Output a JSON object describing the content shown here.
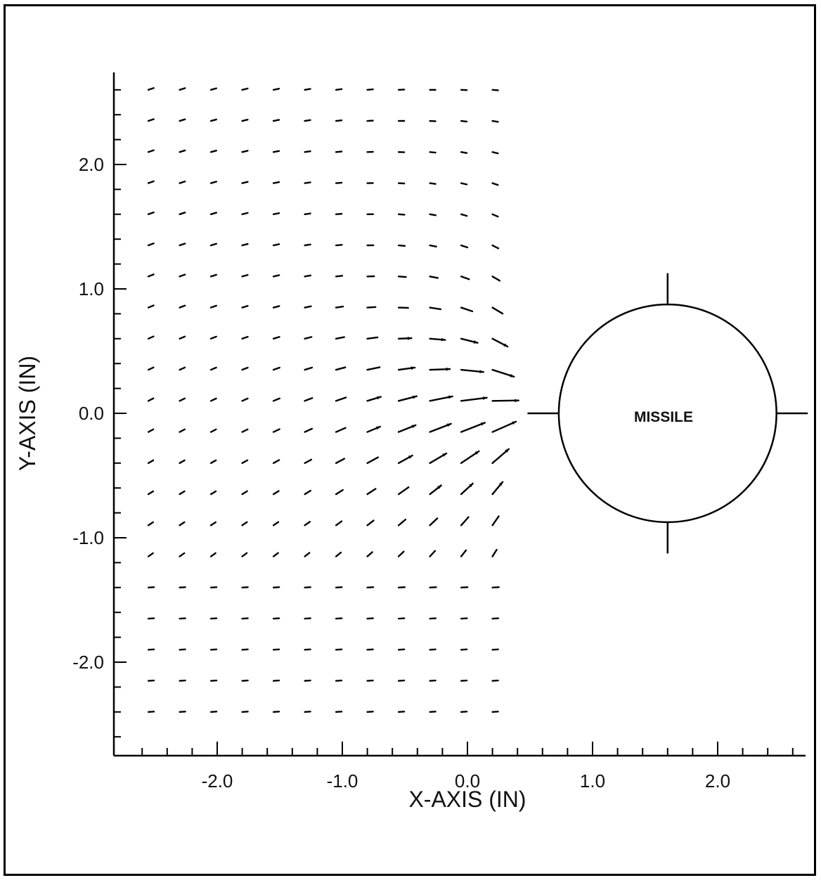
{
  "chart_data": {
    "type": "quiver",
    "title": "",
    "xlabel": "X-AXIS (IN)",
    "ylabel": "Y-AXIS (IN)",
    "xlim": [
      -2.75,
      2.75
    ],
    "ylim": [
      -2.7,
      2.75
    ],
    "x_ticks": [
      -2.0,
      -1.0,
      0.0,
      1.0,
      2.0
    ],
    "x_tick_labels": [
      "-2.0",
      "-1.0",
      "0.0",
      "1.0",
      "2.0"
    ],
    "y_ticks": [
      2.0,
      1.0,
      0.0,
      -1.0,
      -2.0
    ],
    "y_tick_labels": [
      "2.0",
      "1.0",
      "0.0",
      "-1.0",
      "-2.0"
    ],
    "x_minor_step": 0.2,
    "y_minor_step": 0.2,
    "grid": false,
    "vector_field": {
      "x_start": -2.55,
      "x_step": 0.25,
      "nx": 12,
      "y_start": 2.6,
      "y_step": -0.25,
      "ny": 21,
      "stroke_color": "#000000"
    },
    "object": {
      "label": "MISSILE",
      "shape": "circle",
      "center": [
        1.6,
        0.0
      ],
      "radius": 0.87,
      "fin_extent": 1.12
    }
  }
}
